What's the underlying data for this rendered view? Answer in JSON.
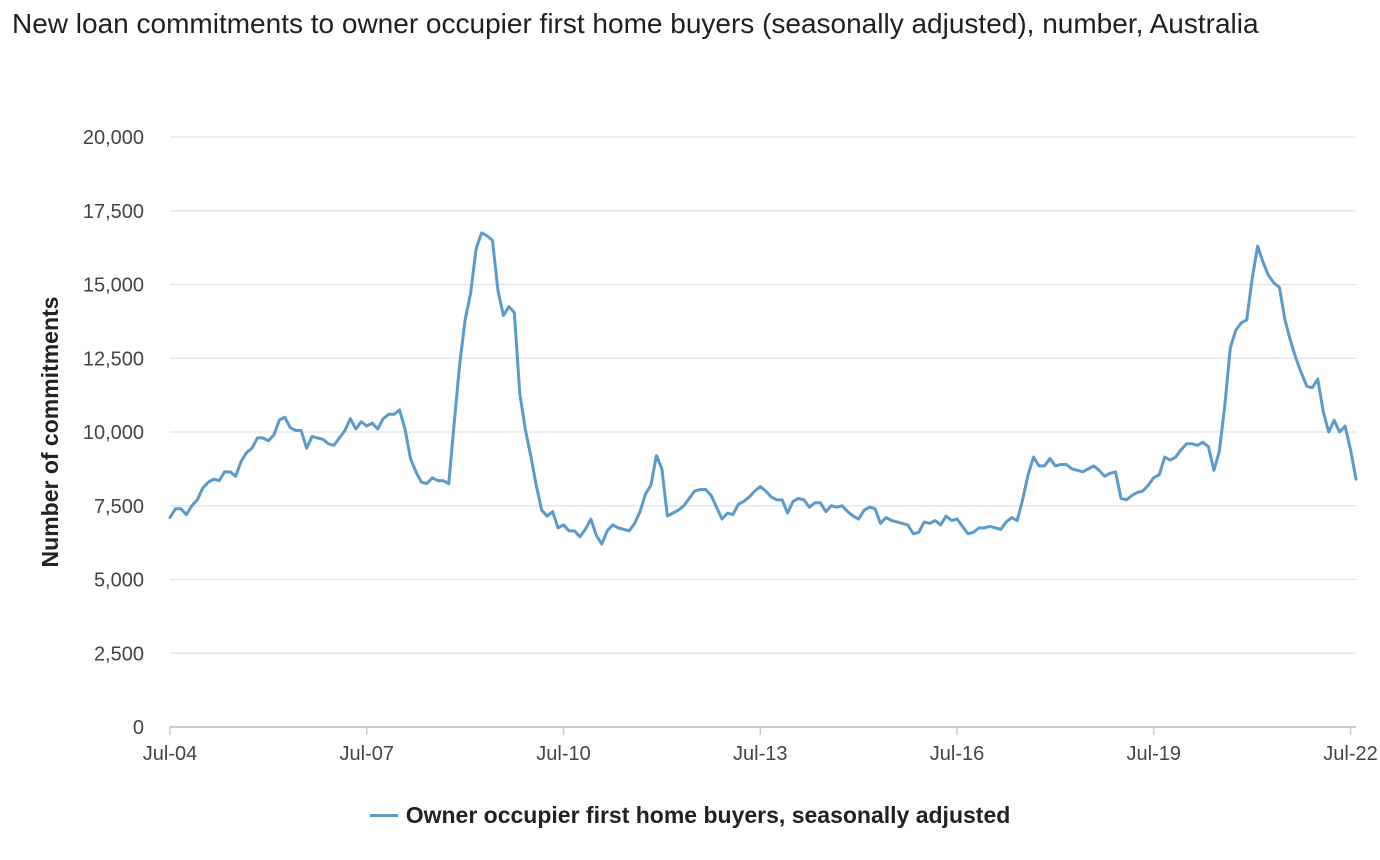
{
  "title": "New loan commitments to owner occupier first home buyers (seasonally adjusted), number, Australia",
  "legend": {
    "label": "Owner occupier first home buyers, seasonally adjusted"
  },
  "colors": {
    "series": "#5a9bcb",
    "grid": "#e3e3e3",
    "axis": "#cccccc"
  },
  "chart_data": {
    "type": "line",
    "title": "New loan commitments to owner occupier first home buyers (seasonally adjusted), number, Australia",
    "xlabel": "",
    "ylabel": "Number of commitments",
    "ylim": [
      0,
      20000
    ],
    "yticks": [
      0,
      2500,
      5000,
      7500,
      10000,
      12500,
      15000,
      17500,
      20000
    ],
    "ytick_labels": [
      "0",
      "2,500",
      "5,000",
      "7,500",
      "10,000",
      "12,500",
      "15,000",
      "17,500",
      "20,000"
    ],
    "xticks": [
      "Jul-04",
      "Jul-07",
      "Jul-10",
      "Jul-13",
      "Jul-16",
      "Jul-19",
      "Jul-22"
    ],
    "grid": true,
    "legend_position": "bottom-center",
    "series": [
      {
        "name": "Owner occupier first home buyers, seasonally adjusted",
        "start": "Jul-04",
        "frequency": "monthly",
        "values": [
          7100,
          7400,
          7400,
          7200,
          7500,
          7700,
          8100,
          8300,
          8400,
          8350,
          8650,
          8650,
          8500,
          9000,
          9300,
          9450,
          9800,
          9800,
          9700,
          9900,
          10400,
          10500,
          10150,
          10050,
          10050,
          9450,
          9850,
          9800,
          9750,
          9600,
          9550,
          9800,
          10050,
          10450,
          10100,
          10350,
          10200,
          10300,
          10100,
          10450,
          10600,
          10600,
          10750,
          10100,
          9100,
          8650,
          8300,
          8250,
          8450,
          8350,
          8350,
          8250,
          10300,
          12300,
          13800,
          14700,
          16200,
          16750,
          16650,
          16500,
          14800,
          13950,
          14250,
          14050,
          11300,
          10100,
          9200,
          8200,
          7350,
          7150,
          7300,
          6750,
          6850,
          6650,
          6650,
          6450,
          6700,
          7050,
          6500,
          6200,
          6650,
          6850,
          6750,
          6700,
          6650,
          6900,
          7300,
          7900,
          8200,
          9200,
          8750,
          7150,
          7250,
          7350,
          7500,
          7750,
          8000,
          8050,
          8050,
          7850,
          7450,
          7050,
          7250,
          7200,
          7550,
          7650,
          7800,
          8000,
          8150,
          8000,
          7800,
          7700,
          7700,
          7250,
          7650,
          7750,
          7700,
          7450,
          7600,
          7600,
          7300,
          7500,
          7450,
          7500,
          7300,
          7150,
          7050,
          7350,
          7450,
          7400,
          6900,
          7100,
          7000,
          6950,
          6900,
          6850,
          6550,
          6600,
          6950,
          6900,
          7000,
          6850,
          7150,
          7000,
          7050,
          6800,
          6550,
          6600,
          6750,
          6750,
          6800,
          6750,
          6700,
          6950,
          7100,
          7000,
          7700,
          8550,
          9150,
          8850,
          8850,
          9100,
          8850,
          8900,
          8900,
          8750,
          8700,
          8650,
          8750,
          8850,
          8700,
          8500,
          8600,
          8650,
          7750,
          7700,
          7850,
          7950,
          8000,
          8200,
          8450,
          8550,
          9150,
          9050,
          9150,
          9400,
          9600,
          9600,
          9550,
          9650,
          9500,
          8700,
          9350,
          10900,
          12850,
          13450,
          13700,
          13800,
          15200,
          16300,
          15750,
          15300,
          15050,
          14900,
          13800,
          13100,
          12500,
          12000,
          11550,
          11500,
          11800,
          10700,
          10000,
          10400,
          10000,
          10200,
          9400,
          8400
        ]
      }
    ]
  }
}
